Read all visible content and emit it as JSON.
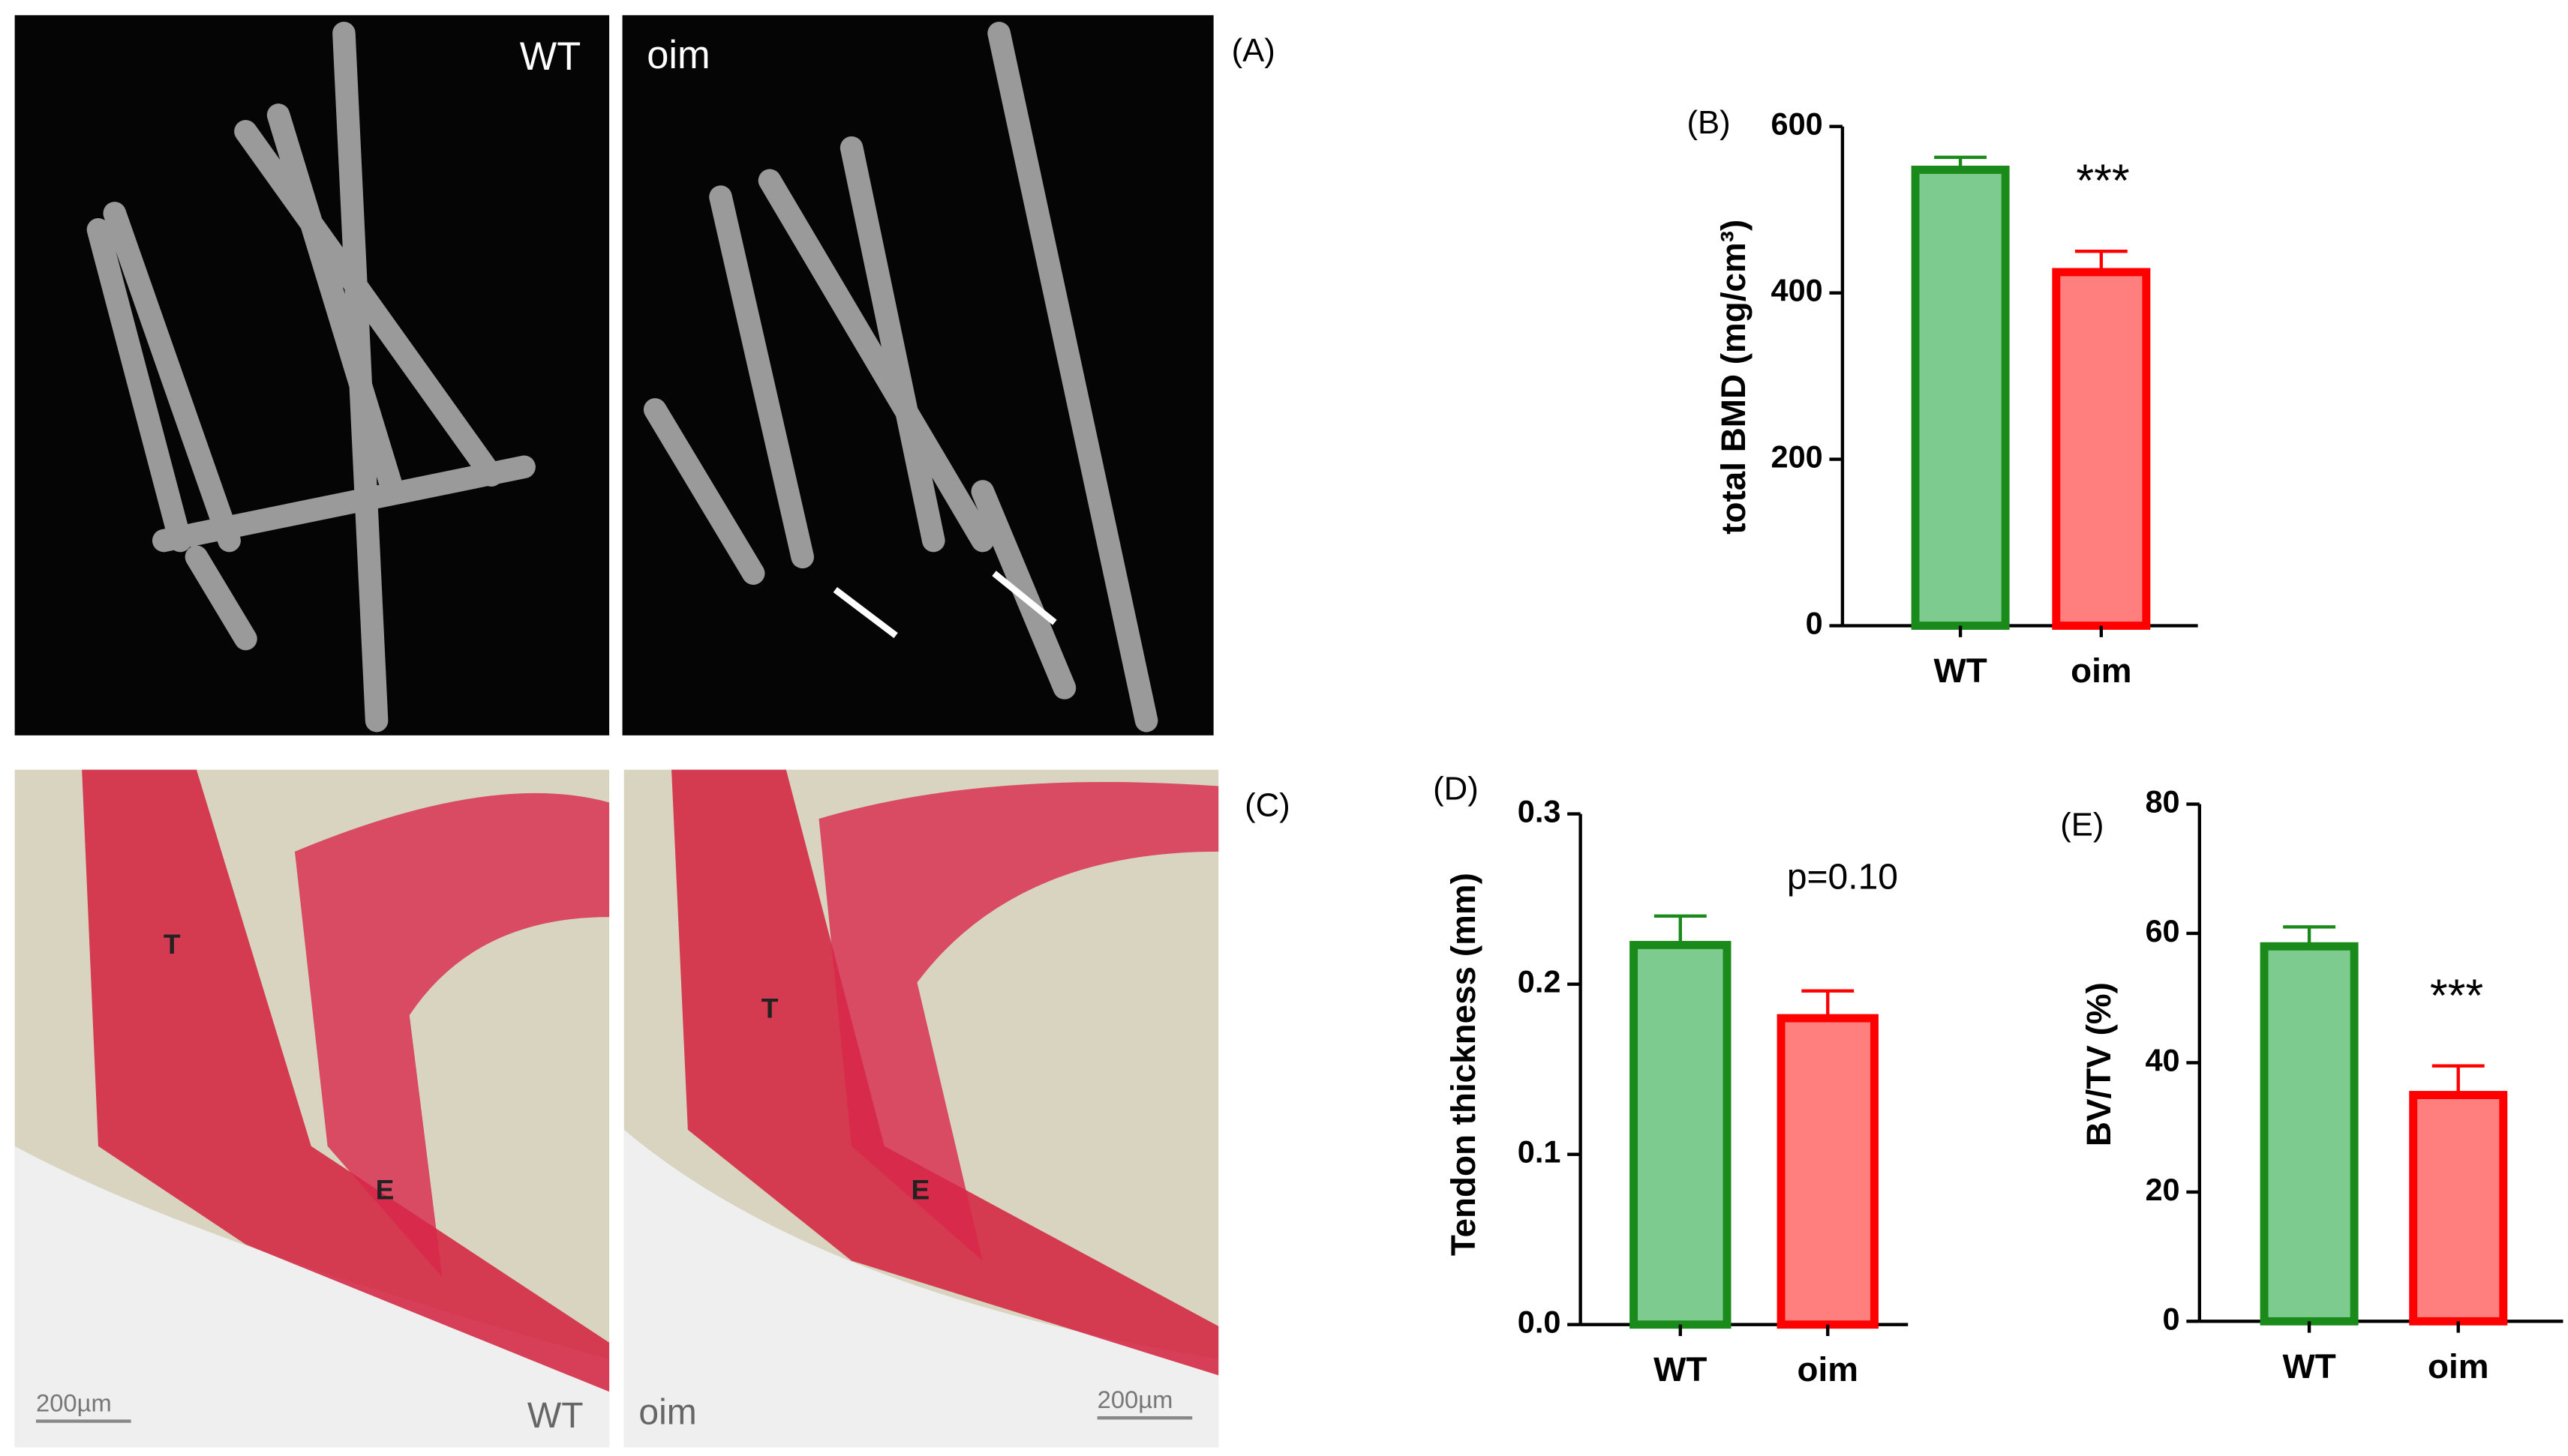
{
  "panels": {
    "a": "(A)",
    "c": "(C)",
    "ct_wt": "WT",
    "ct_oim": "oim",
    "hist_t1": "T",
    "hist_t2": "T",
    "hist_e1": "E",
    "hist_e2": "E",
    "scale1": "200µm",
    "scale2": "200µm",
    "hist_wt": "WT",
    "hist_oim": "oim"
  },
  "chart_data": [
    {
      "type": "bar",
      "panel_label": "(B)",
      "y_label": "total BMD (mg/cm³)",
      "annotation": "***",
      "categories": [
        "WT",
        "oim"
      ],
      "values": [
        548,
        425
      ],
      "errors": [
        15,
        25
      ],
      "colors": [
        "#7dcb8f",
        "#ff7f7f"
      ],
      "edge_colors": [
        "#1a8a1a",
        "#ff0000"
      ],
      "ylim": [
        0,
        600
      ],
      "yticks": [
        0,
        200,
        400,
        600
      ]
    },
    {
      "type": "bar",
      "panel_label": "(D)",
      "y_label": "Tendon thickness (mm)",
      "annotation": "p=0.10",
      "categories": [
        "WT",
        "oim"
      ],
      "values": [
        0.223,
        0.18
      ],
      "errors": [
        0.017,
        0.016
      ],
      "colors": [
        "#7dcb8f",
        "#ff7f7f"
      ],
      "edge_colors": [
        "#1a8a1a",
        "#ff0000"
      ],
      "ylim": [
        0,
        0.3
      ],
      "yticks": [
        {
          "value": 0,
          "label": "0.0"
        },
        0.1,
        0.2,
        0.3
      ]
    },
    {
      "type": "bar",
      "panel_label": "(E)",
      "y_label": "BV/TV (%)",
      "annotation": "***",
      "categories": [
        "WT",
        "oim"
      ],
      "values": [
        58,
        35
      ],
      "errors": [
        3,
        4.5
      ],
      "colors": [
        "#7dcb8f",
        "#ff7f7f"
      ],
      "edge_colors": [
        "#1a8a1a",
        "#ff0000"
      ],
      "ylim": [
        0,
        80
      ],
      "yticks": [
        0,
        20,
        40,
        60,
        80
      ]
    }
  ]
}
